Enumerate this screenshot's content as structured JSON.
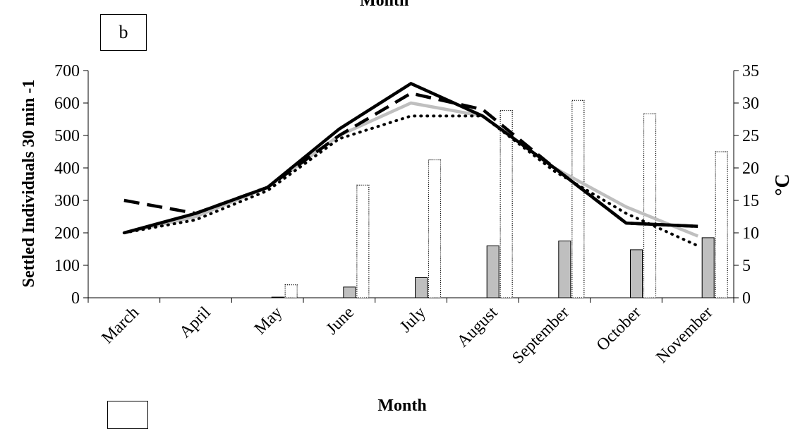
{
  "chart_data": {
    "type": "bar+line",
    "panel_label": "b",
    "top_label": "Month",
    "xlabel": "Month",
    "ylabel": "Settled Individuals 30 min -1",
    "y2label": "°C",
    "categories": [
      "March",
      "April",
      "May",
      "June",
      "July",
      "August",
      "September",
      "October",
      "November"
    ],
    "ylim": [
      0,
      700
    ],
    "yticks": [
      0,
      100,
      200,
      300,
      400,
      500,
      600,
      700
    ],
    "y2lim": [
      0,
      35
    ],
    "y2ticks": [
      0,
      5,
      10,
      15,
      20,
      25,
      30,
      35
    ],
    "bar_series": [
      {
        "axis": "left",
        "style": "gray-filled",
        "color": "#bfbfbf",
        "values": [
          0,
          0,
          2,
          33,
          62,
          160,
          175,
          148,
          185
        ]
      },
      {
        "axis": "left",
        "style": "dotted-outline",
        "color": "#ffffff",
        "values": [
          0,
          0,
          40,
          347,
          425,
          577,
          608,
          567,
          450
        ]
      }
    ],
    "line_series": [
      {
        "axis": "right",
        "style": "solid-black",
        "color": "#000000",
        "values": [
          10,
          13,
          17,
          26,
          33,
          28,
          20,
          11.5,
          11
        ]
      },
      {
        "axis": "right",
        "style": "dashed-black",
        "color": "#000000",
        "values": [
          15,
          13,
          17,
          25,
          31.5,
          29,
          20,
          11.5,
          11
        ]
      },
      {
        "axis": "right",
        "style": "solid-gray",
        "color": "#bfbfbf",
        "values": [
          10,
          12.5,
          17,
          25,
          30,
          28,
          20,
          14,
          9.5
        ]
      },
      {
        "axis": "right",
        "style": "dotted-black",
        "color": "#000000",
        "values": [
          10,
          12,
          16.5,
          24.5,
          28,
          28,
          19.5,
          13,
          8
        ]
      }
    ]
  }
}
